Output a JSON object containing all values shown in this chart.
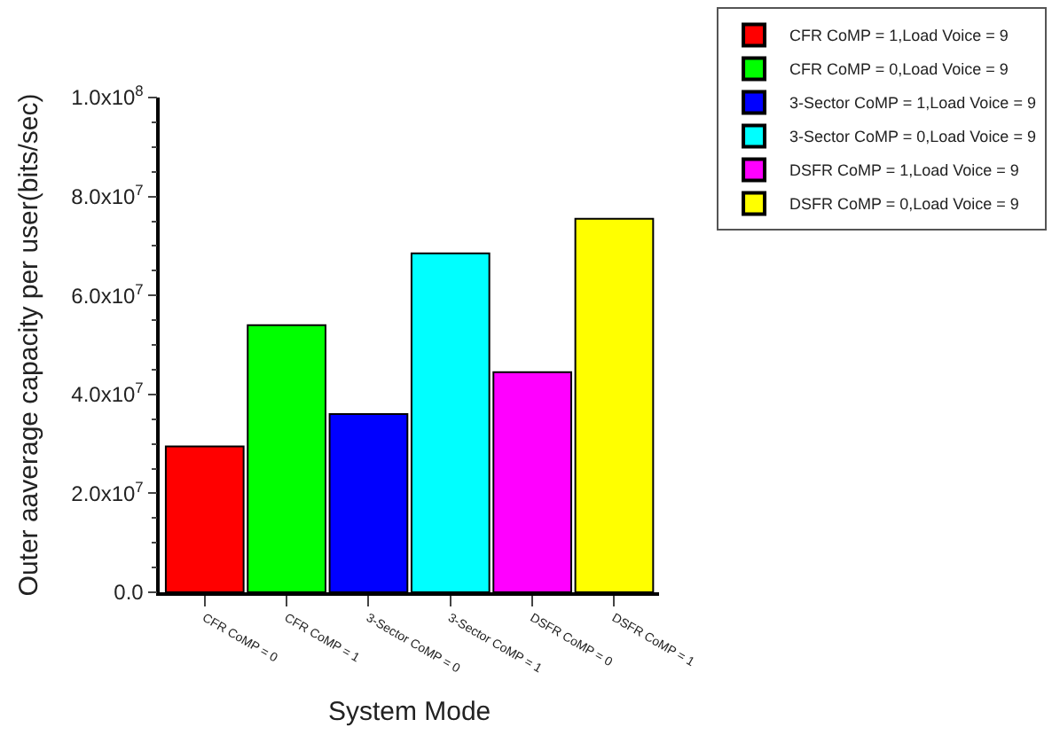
{
  "chart_data": {
    "type": "bar",
    "xlabel": "System Mode",
    "ylabel": "Outer aaverage capacity per user(bits/sec)",
    "categories": [
      "CFR CoMP = 0",
      "CFR CoMP = 1",
      "3-Sector CoMP = 0",
      "3-Sector CoMP = 1",
      "DSFR CoMP = 0",
      "DSFR CoMP = 1"
    ],
    "series": [
      {
        "name": "CFR CoMP = 1,Load Voice = 9",
        "color": "#ff0000",
        "values": [
          29500000,
          null,
          null,
          null,
          null,
          null
        ]
      },
      {
        "name": "CFR CoMP = 0,Load Voice = 9",
        "color": "#00ff00",
        "values": [
          null,
          54000000,
          null,
          null,
          null,
          null
        ]
      },
      {
        "name": "3-Sector CoMP = 1,Load Voice = 9",
        "color": "#0000ff",
        "values": [
          null,
          null,
          36000000,
          null,
          null,
          null
        ]
      },
      {
        "name": "3-Sector CoMP = 0,Load Voice = 9",
        "color": "#00ffff",
        "values": [
          null,
          null,
          null,
          68500000,
          null,
          null
        ]
      },
      {
        "name": "DSFR CoMP = 1,Load Voice = 9",
        "color": "#ff00ff",
        "values": [
          null,
          null,
          null,
          null,
          44500000,
          null
        ]
      },
      {
        "name": "DSFR CoMP = 0,Load Voice = 9",
        "color": "#ffff00",
        "values": [
          null,
          null,
          null,
          null,
          null,
          75500000
        ]
      }
    ],
    "ylim": [
      0,
      100000000
    ],
    "yticks": [
      {
        "value": 0,
        "label": "0.0"
      },
      {
        "value": 20000000,
        "label": "2.0x10$^{7}$"
      },
      {
        "value": 40000000,
        "label": "4.0x10$^{7}$"
      },
      {
        "value": 60000000,
        "label": "6.0x10$^{7}$"
      },
      {
        "value": 80000000,
        "label": "8.0x10$^{7}$"
      },
      {
        "value": 100000000,
        "label": "1.0x10$^{8}$"
      }
    ],
    "legend": "top right"
  }
}
